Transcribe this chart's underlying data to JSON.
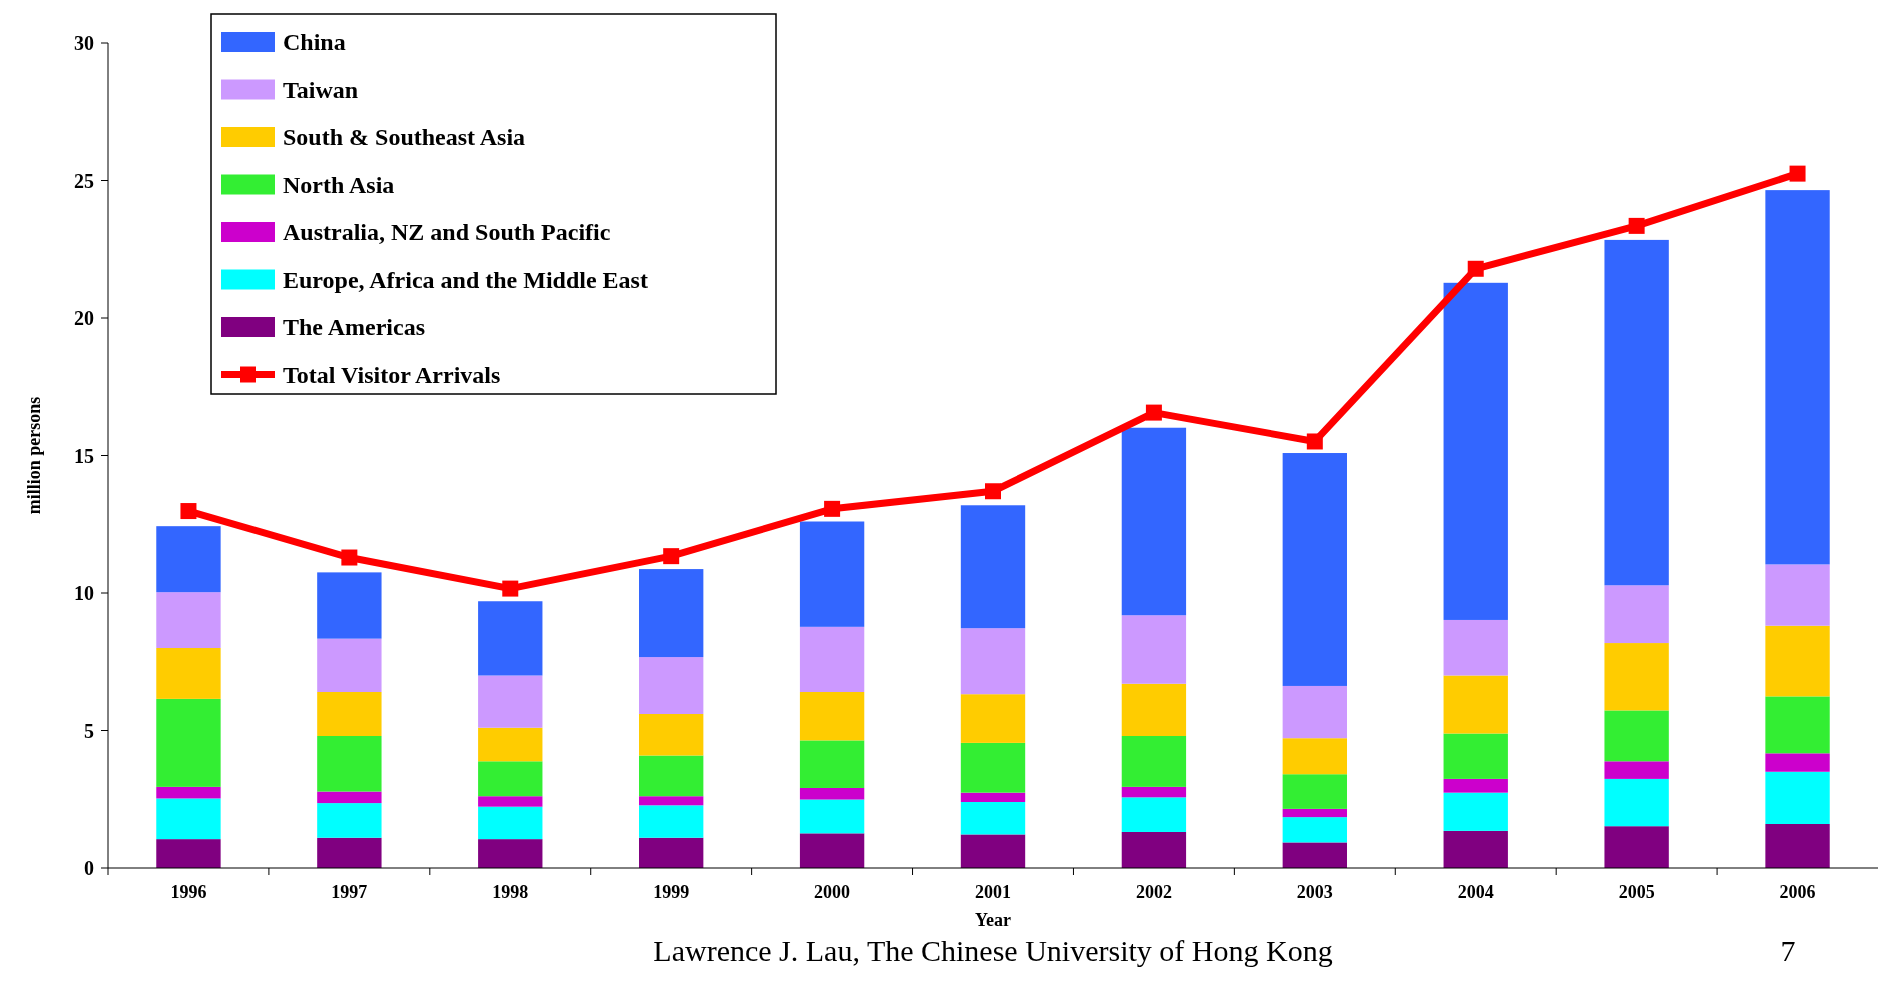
{
  "chart_data": {
    "type": "bar",
    "stacked": true,
    "xlabel": "Year",
    "ylabel": "million persons",
    "categories": [
      "1996",
      "1997",
      "1998",
      "1999",
      "2000",
      "2001",
      "2002",
      "2003",
      "2004",
      "2005",
      "2006"
    ],
    "ylim": [
      0,
      30
    ],
    "yticks": [
      0,
      5,
      10,
      15,
      20,
      25,
      30
    ],
    "grid": false,
    "legend": "top left",
    "series": [
      {
        "name": "The Americas",
        "color": "#800080",
        "values": [
          1.05,
          1.1,
          1.05,
          1.1,
          1.26,
          1.22,
          1.31,
          0.93,
          1.35,
          1.52,
          1.6
        ]
      },
      {
        "name": "Europe, Africa and the Middle East",
        "color": "#00ffff",
        "values": [
          1.48,
          1.26,
          1.18,
          1.18,
          1.23,
          1.18,
          1.26,
          0.92,
          1.39,
          1.72,
          1.9
        ]
      },
      {
        "name": "Australia, NZ and South Pacific",
        "color": "#cc00cc",
        "values": [
          0.42,
          0.42,
          0.38,
          0.33,
          0.42,
          0.34,
          0.38,
          0.3,
          0.5,
          0.64,
          0.67
        ]
      },
      {
        "name": "North Asia",
        "color": "#33ee33",
        "values": [
          3.2,
          2.02,
          1.27,
          1.48,
          1.73,
          1.81,
          1.85,
          1.26,
          1.65,
          1.85,
          2.07
        ]
      },
      {
        "name": "South & Southeast Asia",
        "color": "#ffcc00",
        "values": [
          1.85,
          1.6,
          1.22,
          1.51,
          1.76,
          1.77,
          1.9,
          1.31,
          2.11,
          2.45,
          2.57
        ]
      },
      {
        "name": "Taiwan",
        "color": "#cc99ff",
        "values": [
          2.03,
          1.94,
          1.9,
          2.07,
          2.37,
          2.4,
          2.49,
          1.9,
          2.02,
          2.1,
          2.23
        ]
      },
      {
        "name": "China",
        "color": "#3366ff",
        "values": [
          2.4,
          2.41,
          2.7,
          3.2,
          3.83,
          4.47,
          6.82,
          8.47,
          12.26,
          12.56,
          13.61
        ]
      },
      {
        "name": "Total Visitor Arrivals",
        "type": "line",
        "color": "#ff0000",
        "marker": "square",
        "values": [
          12.98,
          11.29,
          10.16,
          11.34,
          13.06,
          13.7,
          16.56,
          15.51,
          21.79,
          23.35,
          25.25
        ]
      }
    ],
    "annotations": [
      "Lawrence J. Lau, The Chinese University of Hong Kong",
      "7"
    ]
  }
}
